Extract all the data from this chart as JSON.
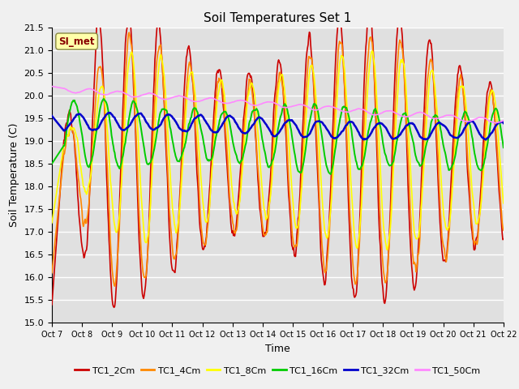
{
  "title": "Soil Temperatures Set 1",
  "xlabel": "Time",
  "ylabel": "Soil Temperature (C)",
  "ylim": [
    15.0,
    21.5
  ],
  "x_labels": [
    "Oct 7",
    "Oct 8",
    "Oct 9",
    "Oct 10",
    "Oct 11",
    "Oct 12",
    "Oct 13",
    "Oct 14",
    "Oct 15",
    "Oct 16",
    "Oct 17",
    "Oct 18",
    "Oct 19",
    "Oct 20",
    "Oct 21",
    "Oct 22"
  ],
  "series_colors": [
    "#cc0000",
    "#ff8800",
    "#ffff00",
    "#00cc00",
    "#0000cc",
    "#ff88ff"
  ],
  "series_names": [
    "TC1_2Cm",
    "TC1_4Cm",
    "TC1_8Cm",
    "TC1_16Cm",
    "TC1_32Cm",
    "TC1_50Cm"
  ],
  "annotation_text": "SI_met",
  "annotation_color": "#880000",
  "figsize": [
    6.4,
    4.8
  ],
  "dpi": 100
}
